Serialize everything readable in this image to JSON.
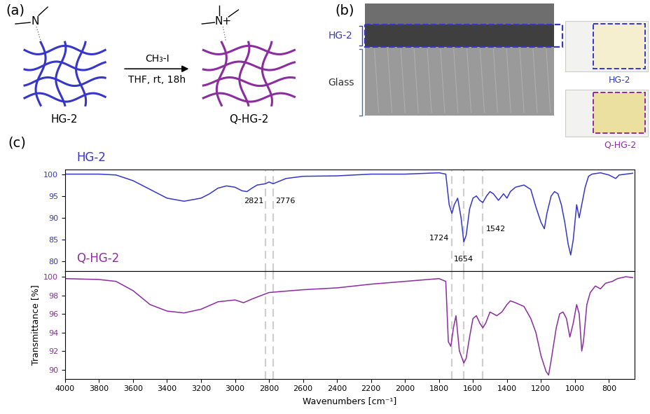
{
  "panel_labels": [
    "(a)",
    "(b)",
    "(c)"
  ],
  "scheme": {
    "reactant": "HG-2",
    "product": "Q-HG-2",
    "reagent": "CH₃-I",
    "conditions": "THF, rt, 18h",
    "reactant_group": "N",
    "product_group": "N+"
  },
  "micrograph": {
    "layers": [
      "HG-2",
      "Glass"
    ]
  },
  "photos": [
    "HG-2",
    "Q-HG-2"
  ],
  "chart_data": [
    {
      "type": "line",
      "title": "HG-2",
      "color": "#3636c8",
      "x": [
        4000,
        3800,
        3700,
        3600,
        3500,
        3400,
        3300,
        3200,
        3150,
        3100,
        3050,
        3000,
        2960,
        2930,
        2900,
        2870,
        2821,
        2800,
        2776,
        2700,
        2600,
        2400,
        2200,
        2000,
        1800,
        1760,
        1740,
        1724,
        1710,
        1690,
        1670,
        1654,
        1640,
        1620,
        1600,
        1580,
        1560,
        1542,
        1520,
        1500,
        1480,
        1450,
        1420,
        1400,
        1380,
        1350,
        1300,
        1260,
        1230,
        1200,
        1180,
        1165,
        1140,
        1120,
        1100,
        1080,
        1060,
        1040,
        1025,
        1010,
        990,
        975,
        960,
        940,
        920,
        900,
        850,
        800,
        760,
        740,
        700,
        660
      ],
      "values": [
        100,
        100,
        99.8,
        98.5,
        96.5,
        94.5,
        93.8,
        94.5,
        95.5,
        96.8,
        97.3,
        97,
        96.2,
        96,
        96.8,
        97.5,
        97.8,
        98.2,
        97.8,
        99,
        99.5,
        99.6,
        100,
        100,
        100.3,
        100,
        93,
        91,
        93,
        94.5,
        90,
        84.5,
        86,
        92,
        94.5,
        95,
        94,
        93.5,
        95,
        96,
        95.5,
        94,
        95.5,
        94.5,
        96,
        97,
        97.5,
        96.5,
        92.5,
        89,
        87.5,
        91,
        95,
        96,
        95.5,
        93,
        89,
        84,
        81.5,
        85,
        93,
        90,
        93,
        97,
        99.5,
        100,
        100.3,
        99.8,
        99,
        99.8,
        100,
        100.2
      ],
      "xlim": [
        4000,
        650
      ],
      "xticks": [
        4000,
        3800,
        3600,
        3400,
        3200,
        3000,
        2800,
        2600,
        2400,
        2200,
        2000,
        1800,
        1600,
        1400,
        1200,
        1000,
        800
      ],
      "ylim": [
        77.8,
        101
      ],
      "yticks": [
        80,
        85,
        90,
        95,
        100
      ],
      "tick_labels": "y",
      "annotations": [
        {
          "x": 2821,
          "text": "2821"
        },
        {
          "x": 2776,
          "text": "2776"
        },
        {
          "x": 1724,
          "text": "1724"
        },
        {
          "x": 1654,
          "text": "1654"
        },
        {
          "x": 1542,
          "text": "1542"
        }
      ]
    },
    {
      "type": "line",
      "title": "Q-HG-2",
      "color": "#8b2d9e",
      "x": [
        4000,
        3800,
        3700,
        3600,
        3500,
        3400,
        3300,
        3200,
        3100,
        3000,
        2950,
        2900,
        2800,
        2600,
        2400,
        2200,
        2000,
        1800,
        1760,
        1745,
        1730,
        1715,
        1700,
        1680,
        1654,
        1640,
        1620,
        1600,
        1580,
        1560,
        1542,
        1525,
        1500,
        1480,
        1460,
        1430,
        1400,
        1380,
        1350,
        1300,
        1260,
        1230,
        1200,
        1170,
        1155,
        1140,
        1110,
        1090,
        1070,
        1050,
        1030,
        1010,
        990,
        975,
        960,
        950,
        930,
        910,
        880,
        850,
        820,
        780,
        750,
        700,
        660
      ],
      "values": [
        99.8,
        99.7,
        99.5,
        98.5,
        97,
        96.3,
        96.1,
        96.5,
        97.3,
        97.5,
        97.2,
        97.6,
        98.3,
        98.6,
        98.8,
        99.2,
        99.5,
        99.8,
        99.5,
        93,
        92.5,
        94.5,
        95.8,
        92,
        90.7,
        91.2,
        93.5,
        95.5,
        95.8,
        95,
        94.5,
        95,
        96.2,
        96,
        95.8,
        96.2,
        97,
        97.4,
        97.2,
        96.8,
        95.5,
        94,
        91.5,
        89.8,
        89.4,
        91,
        94.5,
        96,
        96.2,
        95.5,
        93.5,
        95,
        97,
        96,
        92,
        93,
        97,
        98.3,
        99,
        98.7,
        99.3,
        99.5,
        99.8,
        100,
        99.9
      ],
      "xlim": [
        4000,
        650
      ],
      "xticks": [
        4000,
        3800,
        3600,
        3400,
        3200,
        3000,
        2800,
        2600,
        2400,
        2200,
        2000,
        1800,
        1600,
        1400,
        1200,
        1000,
        800
      ],
      "ylim": [
        89.0,
        100.6
      ],
      "yticks": [
        90,
        92,
        94,
        96,
        98,
        100
      ],
      "x_label": "Wavenumbers [cm⁻¹]",
      "y_label": "Transmittance [%]"
    }
  ]
}
